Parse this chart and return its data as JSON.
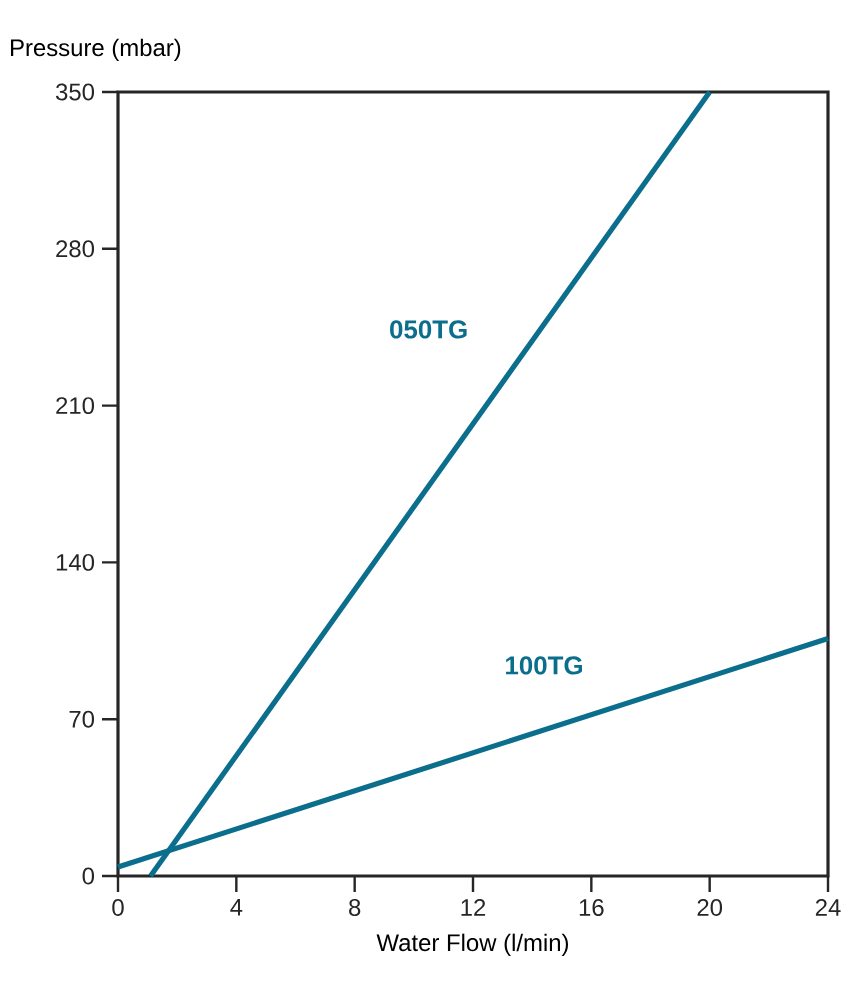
{
  "chart_data": {
    "type": "line",
    "xlabel": "Water Flow (l/min)",
    "ylabel": "Pressure (mbar)",
    "xlim": [
      0,
      24
    ],
    "xticks": [
      0,
      4,
      8,
      12,
      16,
      20,
      24
    ],
    "ylim": [
      0,
      350
    ],
    "yticks": [
      0,
      70,
      140,
      210,
      280,
      350
    ],
    "grid": false,
    "legend": false,
    "marker": "none",
    "line_style": "solid",
    "series": [
      {
        "name": "050TG",
        "color": "#0a6e8c",
        "x": [
          1.1,
          20.0
        ],
        "values": [
          0,
          350
        ]
      },
      {
        "name": "100TG",
        "color": "#0a6e8c",
        "x": [
          0,
          24
        ],
        "values": [
          4,
          106
        ]
      }
    ]
  }
}
